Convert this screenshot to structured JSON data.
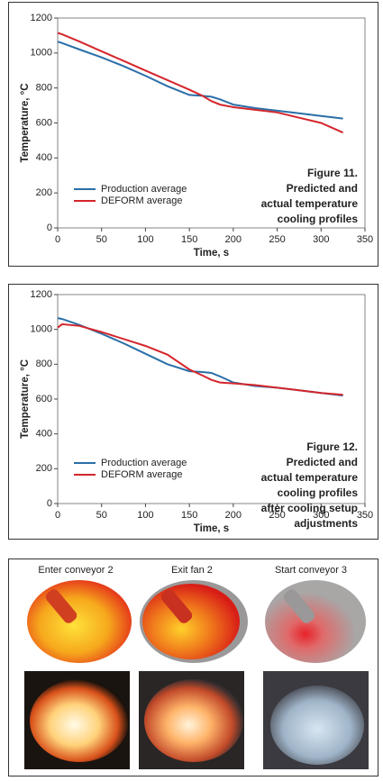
{
  "chart_data": [
    {
      "type": "line",
      "xlabel": "Time, s",
      "ylabel": "Temperature, °C",
      "annotation": [
        "Figure 11.",
        "Predicted and",
        "actual temperature",
        "cooling profiles"
      ],
      "x": [
        0,
        5,
        25,
        50,
        75,
        100,
        125,
        150,
        165,
        175,
        185,
        200,
        225,
        250,
        275,
        300,
        325
      ],
      "series": [
        {
          "name": "Production average",
          "color": "#2a6fa8",
          "values": [
            1065,
            1057,
            1020,
            975,
            925,
            870,
            810,
            760,
            755,
            750,
            735,
            705,
            685,
            670,
            655,
            640,
            625
          ]
        },
        {
          "name": "DEFORM average",
          "color": "#d4262c",
          "values": [
            1115,
            1107,
            1065,
            1010,
            955,
            900,
            845,
            790,
            755,
            725,
            705,
            690,
            675,
            660,
            630,
            600,
            545
          ]
        }
      ],
      "xlim": [
        0,
        350
      ],
      "xticks": [
        0,
        50,
        100,
        150,
        200,
        250,
        300,
        350
      ],
      "ylim": [
        0,
        1200
      ],
      "yticks": [
        0,
        200,
        400,
        600,
        800,
        1000,
        1200
      ]
    },
    {
      "type": "line",
      "xlabel": "Time, s",
      "ylabel": "Temperature, °C",
      "annotation": [
        "Figure 12.",
        "Predicted and",
        "actual temperature",
        "cooling profiles",
        "after cooling setup",
        "adjustments"
      ],
      "x": [
        0,
        5,
        25,
        50,
        75,
        100,
        125,
        150,
        165,
        175,
        185,
        200,
        225,
        250,
        275,
        300,
        325
      ],
      "series": [
        {
          "name": "Production average",
          "color": "#2a6fa8",
          "values": [
            1065,
            1060,
            1025,
            975,
            920,
            860,
            800,
            760,
            755,
            750,
            730,
            695,
            675,
            665,
            650,
            635,
            620
          ]
        },
        {
          "name": "DEFORM average",
          "color": "#d4262c",
          "values": [
            1010,
            1030,
            1020,
            985,
            945,
            905,
            855,
            770,
            735,
            710,
            695,
            690,
            680,
            665,
            650,
            635,
            625
          ]
        }
      ],
      "xlim": [
        0,
        350
      ],
      "xticks": [
        0,
        50,
        100,
        150,
        200,
        250,
        300,
        350
      ],
      "ylim": [
        0,
        1200
      ],
      "yticks": [
        0,
        200,
        400,
        600,
        800,
        1000,
        1200
      ]
    }
  ],
  "photo_panel": {
    "captions": [
      "Enter conveyor 2",
      "Exit fan 2",
      "Start conveyor 3"
    ]
  }
}
